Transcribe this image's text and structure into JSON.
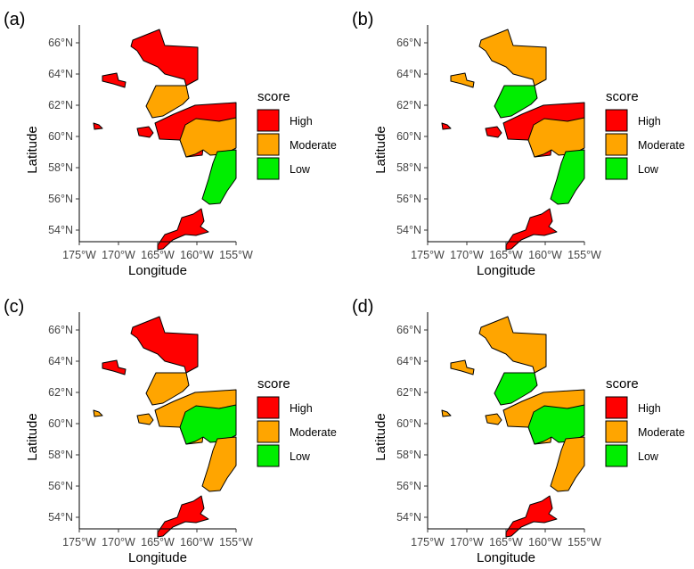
{
  "figure": {
    "axis_titles": {
      "x": "Longitude",
      "y": "Latitude"
    },
    "x_ticks": [
      "175°W",
      "170°W",
      "165°W",
      "160°W",
      "155°W"
    ],
    "y_ticks": [
      "54°N",
      "56°N",
      "58°N",
      "60°N",
      "62°N",
      "64°N",
      "66°N"
    ],
    "legend": {
      "title": "score",
      "items": [
        {
          "label": "High",
          "color": "#ff0000"
        },
        {
          "label": "Moderate",
          "color": "#ffa500"
        },
        {
          "label": "Low",
          "color": "#00ee00"
        }
      ]
    }
  },
  "panels": [
    {
      "tag": "(a)",
      "scores": {
        "north": "High",
        "islandW": "High",
        "stlawrence": "High",
        "nunivak": "High",
        "ykdelta": "Moderate",
        "interior": "High",
        "southcentral": "Moderate",
        "kodiak_coast": "Low",
        "aleutian": "High"
      }
    },
    {
      "tag": "(b)",
      "scores": {
        "north": "Moderate",
        "islandW": "Moderate",
        "stlawrence": "High",
        "nunivak": "High",
        "ykdelta": "Low",
        "interior": "High",
        "southcentral": "Moderate",
        "kodiak_coast": "Low",
        "aleutian": "High"
      }
    },
    {
      "tag": "(c)",
      "scores": {
        "north": "High",
        "islandW": "High",
        "stlawrence": "Moderate",
        "nunivak": "Moderate",
        "ykdelta": "Moderate",
        "interior": "Moderate",
        "southcentral": "Low",
        "kodiak_coast": "Moderate",
        "aleutian": "High"
      }
    },
    {
      "tag": "(d)",
      "scores": {
        "north": "Moderate",
        "islandW": "Moderate",
        "stlawrence": "Moderate",
        "nunivak": "Moderate",
        "ykdelta": "Low",
        "interior": "Moderate",
        "southcentral": "Low",
        "kodiak_coast": "Moderate",
        "aleutian": "High"
      }
    }
  ]
}
